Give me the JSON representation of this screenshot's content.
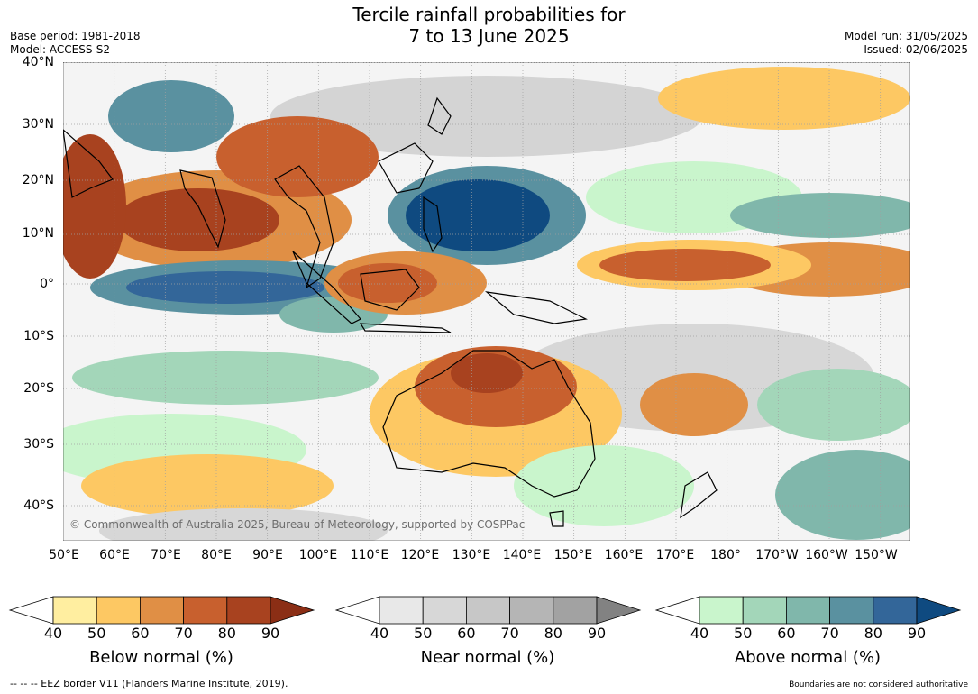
{
  "title_line1": "Tercile rainfall probabilities for",
  "title_line2": "7 to 13 June 2025",
  "base_period": "Base period: 1981-2018",
  "model": "Model: ACCESS-S2",
  "model_run": "Model run: 31/05/2025",
  "issued": "Issued: 02/06/2025",
  "copyright": "© Commonwealth of Australia 2025, Bureau of Meteorology, supported by COSPPac",
  "lat_labels": [
    "40°N",
    "30°N",
    "20°N",
    "10°N",
    "0°",
    "10°S",
    "20°S",
    "30°S",
    "40°S"
  ],
  "lon_labels": [
    "50°E",
    "60°E",
    "70°E",
    "80°E",
    "90°E",
    "100°E",
    "110°E",
    "120°E",
    "130°E",
    "140°E",
    "150°E",
    "160°E",
    "170°E",
    "180°",
    "170°W",
    "160°W",
    "150°W"
  ],
  "colorbars": [
    {
      "title": "Below normal (%)",
      "ticks": [
        "40",
        "50",
        "60",
        "70",
        "80",
        "90"
      ],
      "colors": [
        "#ffeea0",
        "#fdc863",
        "#e08f45",
        "#c8602e",
        "#a8421f"
      ],
      "under": "#ffffff",
      "over": "#8b2e15"
    },
    {
      "title": "Near normal (%)",
      "ticks": [
        "40",
        "50",
        "60",
        "70",
        "80",
        "90"
      ],
      "colors": [
        "#e8e8e8",
        "#d7d7d7",
        "#c7c7c7",
        "#b5b5b5",
        "#a2a2a2"
      ],
      "under": "#ffffff",
      "over": "#828282"
    },
    {
      "title": "Above normal (%)",
      "ticks": [
        "40",
        "50",
        "60",
        "70",
        "80",
        "90"
      ],
      "colors": [
        "#c9f5cc",
        "#a3d6b9",
        "#80b7ab",
        "#5a91a0",
        "#336699"
      ],
      "under": "#ffffff",
      "over": "#0f4a80"
    }
  ],
  "footer_left": "--  --  -- EEZ border V11 (Flanders Marine Institute, 2019).",
  "footer_right": "Boundaries are not considered authoritative"
}
